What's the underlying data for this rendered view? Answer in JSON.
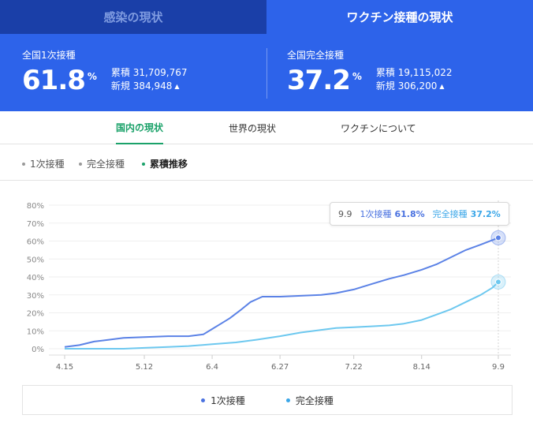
{
  "top_tabs": [
    {
      "label": "感染の現状",
      "active": false
    },
    {
      "label": "ワクチン接種の現状",
      "active": true
    }
  ],
  "stats": [
    {
      "label": "全国1次接種",
      "percent": "61.8",
      "unit": "%",
      "cumulative_label": "累積",
      "cumulative": "31,709,767",
      "new_label": "新規",
      "new": "384,948"
    },
    {
      "label": "全国完全接種",
      "percent": "37.2",
      "unit": "%",
      "cumulative_label": "累積",
      "cumulative": "19,115,022",
      "new_label": "新規",
      "new": "306,200"
    }
  ],
  "sub_tabs": [
    {
      "label": "国内の現状",
      "active": true
    },
    {
      "label": "世界の現状",
      "active": false
    },
    {
      "label": "ワクチンについて",
      "active": false
    }
  ],
  "filters": [
    {
      "label": "1次接種",
      "active": false
    },
    {
      "label": "完全接種",
      "active": false
    },
    {
      "label": "累積推移",
      "active": true
    }
  ],
  "tooltip": {
    "date": "9.9",
    "first_label": "1次接種",
    "first_value": "61.8%",
    "full_label": "完全接種",
    "full_value": "37.2%"
  },
  "legend": [
    {
      "label": "1次接種",
      "color": "#4a72e0"
    },
    {
      "label": "完全接種",
      "color": "#3aa6e8"
    }
  ],
  "colors": {
    "accent_blue": "#2d63ea",
    "dark_blue": "#1a3fa8",
    "green": "#1ba26a",
    "first_dose": "#5b82e6",
    "full_dose": "#6dc8ef"
  },
  "chart_data": {
    "type": "line",
    "y_ticks": [
      "0%",
      "10%",
      "20%",
      "30%",
      "40%",
      "50%",
      "60%",
      "70%",
      "80%"
    ],
    "ylim": [
      0,
      80
    ],
    "x_ticks": [
      {
        "label": "4.15",
        "day": 0
      },
      {
        "label": "5.12",
        "day": 27
      },
      {
        "label": "6.4",
        "day": 50
      },
      {
        "label": "6.27",
        "day": 73
      },
      {
        "label": "7.22",
        "day": 98
      },
      {
        "label": "8.14",
        "day": 121
      },
      {
        "label": "9.9",
        "day": 147
      }
    ],
    "series": [
      {
        "name": "1次接種",
        "points": [
          [
            0,
            1
          ],
          [
            5,
            2
          ],
          [
            10,
            4
          ],
          [
            15,
            5
          ],
          [
            20,
            6
          ],
          [
            27,
            6.5
          ],
          [
            35,
            7
          ],
          [
            42,
            7
          ],
          [
            47,
            8
          ],
          [
            50,
            11
          ],
          [
            53,
            14
          ],
          [
            56,
            17
          ],
          [
            60,
            22
          ],
          [
            63,
            26
          ],
          [
            67,
            29
          ],
          [
            73,
            29
          ],
          [
            80,
            29.5
          ],
          [
            87,
            30
          ],
          [
            92,
            31
          ],
          [
            98,
            33
          ],
          [
            104,
            36
          ],
          [
            110,
            39
          ],
          [
            115,
            41
          ],
          [
            121,
            44
          ],
          [
            126,
            47
          ],
          [
            131,
            51
          ],
          [
            136,
            55
          ],
          [
            141,
            58
          ],
          [
            147,
            61.8
          ]
        ]
      },
      {
        "name": "完全接種",
        "points": [
          [
            0,
            0
          ],
          [
            10,
            0
          ],
          [
            20,
            0
          ],
          [
            27,
            0.5
          ],
          [
            35,
            1
          ],
          [
            42,
            1.5
          ],
          [
            50,
            2.5
          ],
          [
            58,
            3.5
          ],
          [
            65,
            5
          ],
          [
            73,
            7
          ],
          [
            80,
            9
          ],
          [
            87,
            10.5
          ],
          [
            92,
            11.5
          ],
          [
            98,
            12
          ],
          [
            104,
            12.5
          ],
          [
            110,
            13
          ],
          [
            115,
            14
          ],
          [
            121,
            16
          ],
          [
            126,
            19
          ],
          [
            131,
            22
          ],
          [
            136,
            26
          ],
          [
            141,
            30
          ],
          [
            145,
            34
          ],
          [
            147,
            37.2
          ]
        ]
      }
    ]
  }
}
